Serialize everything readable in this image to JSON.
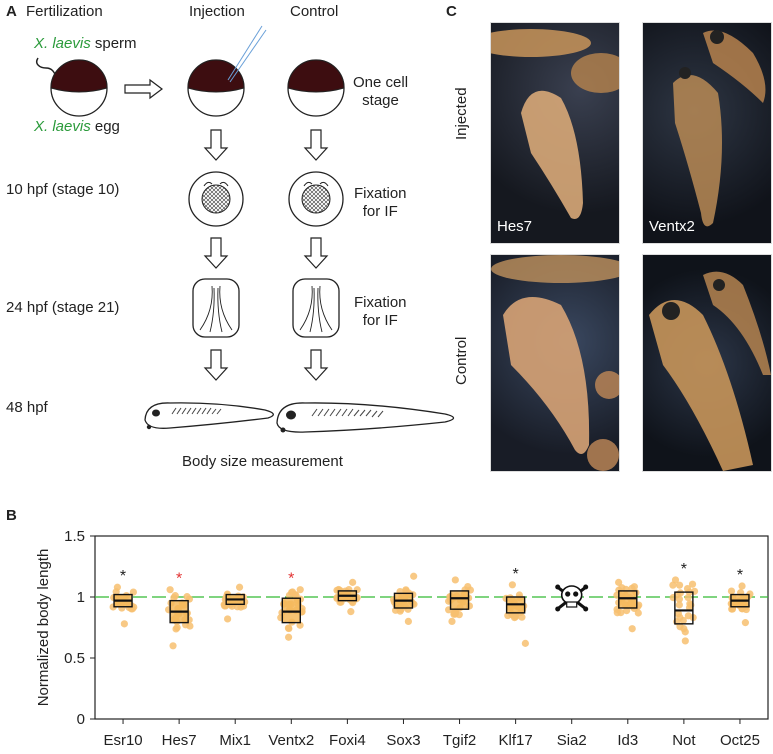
{
  "panels": {
    "a": "A",
    "b": "B",
    "c": "C"
  },
  "panel_a": {
    "col_fertilization": "Fertilization",
    "col_injection": "Injection",
    "col_control": "Control",
    "sperm_label_italic": "X. laevis",
    "sperm_label_rest": " sperm",
    "egg_label_italic": "X. laevis",
    "egg_label_rest": " egg",
    "one_cell_line1": "One cell",
    "one_cell_line2": "stage",
    "stage10": "10 hpf (stage 10)",
    "stage21": "24 hpf (stage 21)",
    "hpf48": "48 hpf",
    "fixation1_line1": "Fixation",
    "fixation1_line2": "for IF",
    "fixation2_line1": "Fixation",
    "fixation2_line2": "for IF",
    "body_size": "Body size measurement"
  },
  "panel_c": {
    "row_injected": "Injected",
    "row_control": "Control",
    "cap_hes7": "Hes7",
    "cap_ventx2": "Ventx2"
  },
  "chart_data": {
    "type": "box",
    "ylabel": "Normalized body length",
    "ylim": [
      0,
      1.5
    ],
    "yticks": [
      "0",
      "0.5",
      "1",
      "1.5"
    ],
    "reference_line": 1,
    "categories": [
      "Esr10",
      "Hes7",
      "Mix1",
      "Ventx2",
      "Foxi4",
      "Sox3",
      "Tgif2",
      "Klf17",
      "Sia2",
      "Id3",
      "Not",
      "Oct25"
    ],
    "boxes": [
      {
        "q1": 0.92,
        "median": 0.97,
        "q3": 1.02,
        "min": 0.78,
        "max": 1.08,
        "sig": "*",
        "sig_color": "#222222",
        "filled": true
      },
      {
        "q1": 0.79,
        "median": 0.88,
        "q3": 0.97,
        "min": 0.6,
        "max": 1.06,
        "sig": "*",
        "sig_color": "#e23030",
        "filled": true
      },
      {
        "q1": 0.94,
        "median": 0.98,
        "q3": 1.02,
        "min": 0.82,
        "max": 1.08,
        "sig": "",
        "sig_color": "#222222",
        "filled": true
      },
      {
        "q1": 0.79,
        "median": 0.88,
        "q3": 0.99,
        "min": 0.67,
        "max": 1.06,
        "sig": "*",
        "sig_color": "#e23030",
        "filled": true
      },
      {
        "q1": 0.97,
        "median": 1.01,
        "q3": 1.05,
        "min": 0.88,
        "max": 1.12,
        "sig": "",
        "sig_color": "#222222",
        "filled": true
      },
      {
        "q1": 0.91,
        "median": 0.97,
        "q3": 1.03,
        "min": 0.8,
        "max": 1.17,
        "sig": "",
        "sig_color": "#222222",
        "filled": true
      },
      {
        "q1": 0.9,
        "median": 0.99,
        "q3": 1.05,
        "min": 0.8,
        "max": 1.14,
        "sig": "",
        "sig_color": "#222222",
        "filled": true
      },
      {
        "q1": 0.87,
        "median": 0.94,
        "q3": 1.0,
        "min": 0.62,
        "max": 1.1,
        "sig": "*",
        "sig_color": "#222222",
        "filled": true
      },
      {
        "skull": true,
        "sig": "",
        "sig_color": "#222222"
      },
      {
        "q1": 0.91,
        "median": 0.99,
        "q3": 1.05,
        "min": 0.74,
        "max": 1.12,
        "sig": "",
        "sig_color": "#222222",
        "filled": true
      },
      {
        "q1": 0.78,
        "median": 0.89,
        "q3": 1.04,
        "min": 0.64,
        "max": 1.14,
        "sig": "*",
        "sig_color": "#222222",
        "filled": false
      },
      {
        "q1": 0.92,
        "median": 0.97,
        "q3": 1.02,
        "min": 0.79,
        "max": 1.09,
        "sig": "*",
        "sig_color": "#222222",
        "filled": true
      }
    ],
    "colors": {
      "box": "#f5b95a",
      "points": "#f7c070",
      "ref_line": "#33bb33",
      "sig_red": "#e23030"
    }
  }
}
